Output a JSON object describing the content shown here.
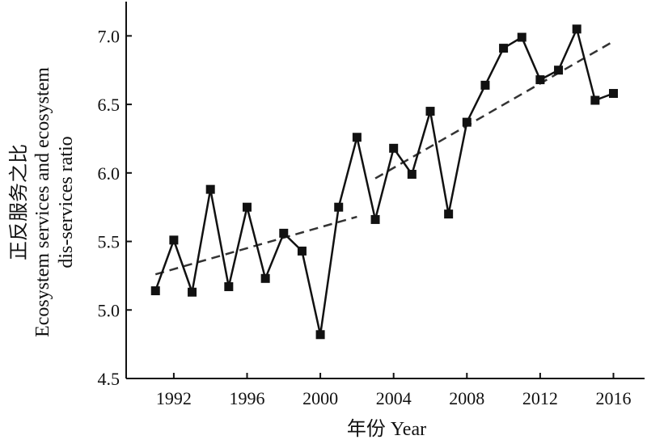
{
  "chart_data": {
    "type": "line",
    "xlabel": "年份 Year",
    "ylabel_lines": [
      "正反服务之比",
      "Ecosystem services and ecosystem",
      "dis-services ratio"
    ],
    "xlim": [
      1989.4,
      2017.7
    ],
    "ylim": [
      4.5,
      7.25
    ],
    "x_ticks": [
      1992,
      1996,
      2000,
      2004,
      2008,
      2012,
      2016
    ],
    "y_ticks": [
      4.5,
      5.0,
      5.5,
      6.0,
      6.5,
      7.0
    ],
    "y_tick_labels": [
      "4.5",
      "5.0",
      "5.5",
      "6.0",
      "6.5",
      "7.0"
    ],
    "grid": false,
    "series": [
      {
        "marker": "square",
        "color": "#111111",
        "x": [
          1991,
          1992,
          1993,
          1994,
          1995,
          1996,
          1997,
          1998,
          1999,
          2000,
          2001,
          2002,
          2003,
          2004,
          2005,
          2006,
          2007,
          2008,
          2009,
          2010,
          2011,
          2012,
          2013,
          2014,
          2015,
          2016
        ],
        "y": [
          5.14,
          5.51,
          5.13,
          5.88,
          5.17,
          5.75,
          5.23,
          5.56,
          5.43,
          4.82,
          5.75,
          6.26,
          5.66,
          6.18,
          5.99,
          6.45,
          5.7,
          6.37,
          6.64,
          6.91,
          6.99,
          6.68,
          6.75,
          7.05,
          6.53,
          6.58
        ]
      }
    ],
    "trendlines": [
      {
        "style": "dashed",
        "x": [
          1991,
          2002
        ],
        "y": [
          5.26,
          5.68
        ]
      },
      {
        "style": "dashed",
        "x": [
          2003,
          2016
        ],
        "y": [
          5.96,
          6.96
        ]
      }
    ]
  }
}
